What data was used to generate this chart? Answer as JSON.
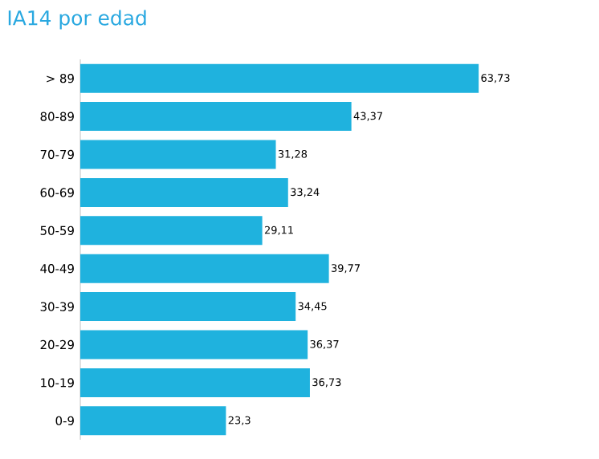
{
  "chart_data": {
    "type": "bar",
    "orientation": "horizontal",
    "title": "IA14 por edad",
    "categories": [
      "> 89",
      "80-89",
      "70-79",
      "60-69",
      "50-59",
      "40-49",
      "30-39",
      "20-29",
      "10-19",
      "0-9"
    ],
    "values": [
      63.73,
      43.37,
      31.28,
      33.24,
      29.11,
      39.77,
      34.45,
      36.37,
      36.73,
      23.3
    ],
    "value_labels": [
      "63,73",
      "43,37",
      "31,28",
      "33,24",
      "29,11",
      "39,77",
      "34,45",
      "36,37",
      "36,73",
      "23,3"
    ],
    "color": "#1fb2de"
  }
}
